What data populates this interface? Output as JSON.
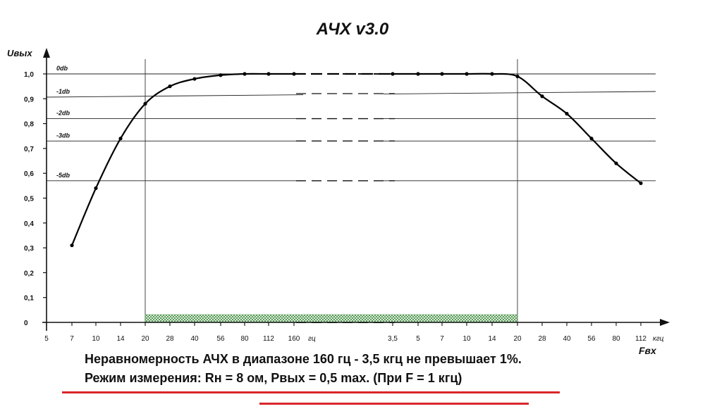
{
  "chart_data": {
    "type": "line",
    "title": "АЧХ  v3.0",
    "ylabel": "Uвых",
    "xlabel": "Fвх",
    "ylim": [
      0,
      1.0
    ],
    "y_ticks": [
      "0",
      "0,1",
      "0,2",
      "0,3",
      "0,4",
      "0,5",
      "0,6",
      "0,7",
      "0,8",
      "0,9",
      "1,0"
    ],
    "x_tick_labels": [
      "5",
      "7",
      "10",
      "14",
      "20",
      "28",
      "40",
      "56",
      "80",
      "112",
      "160",
      "гц",
      "3,5",
      "5",
      "7",
      "10",
      "14",
      "20",
      "28",
      "40",
      "56",
      "80",
      "112",
      "кгц"
    ],
    "db_levels": [
      {
        "label": "0db",
        "value": 1.0
      },
      {
        "label": "-1db",
        "value": 0.91
      },
      {
        "label": "-2db",
        "value": 0.82
      },
      {
        "label": "-3db",
        "value": 0.73
      },
      {
        "label": "-5db",
        "value": 0.57
      }
    ],
    "series": [
      {
        "x": [
          "7 гц",
          "10 гц",
          "14 гц",
          "20 гц",
          "28 гц",
          "40 гц",
          "56 гц",
          "80 гц",
          "112 гц",
          "160 гц",
          "3,5 кгц",
          "5 кгц",
          "7 кгц",
          "10 кгц",
          "14 кгц",
          "20 кгц",
          "28 кгц",
          "40 кгц",
          "56 кгц",
          "80 кгц",
          "112 кгц"
        ],
        "values": [
          0.31,
          0.54,
          0.74,
          0.88,
          0.95,
          0.98,
          0.995,
          1.0,
          1.0,
          1.0,
          1.0,
          1.0,
          1.0,
          1.0,
          1.0,
          0.99,
          0.91,
          0.84,
          0.74,
          0.64,
          0.56
        ]
      }
    ],
    "band": {
      "from": "20 гц",
      "to": "20 кгц"
    },
    "grid": false
  },
  "notes": {
    "line1": "Неравномерность АЧХ в диапазоне 160 гц - 3,5 кгц не превышает 1%.",
    "line2": "Режим измерения: Rн = 8 ом, Pвых = 0,5 max. (При F = 1 кгц)"
  },
  "colors": {
    "curve": "#000000",
    "band": "#3a8a3a",
    "underline": "#d9262b"
  }
}
